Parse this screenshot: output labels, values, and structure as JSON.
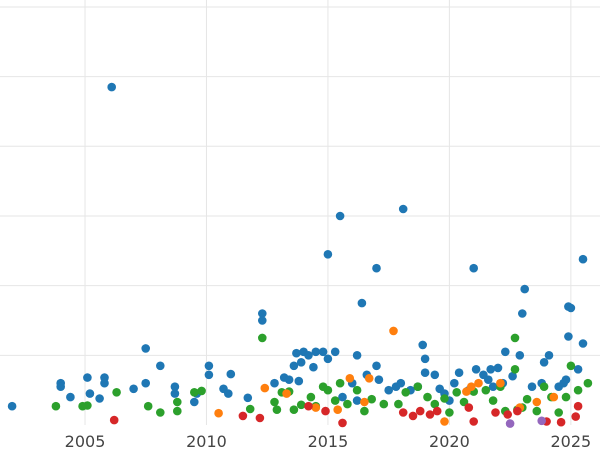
{
  "chart_data": {
    "type": "scatter",
    "title": "",
    "xlabel": "",
    "ylabel": "",
    "xlim": [
      2001.5,
      2026.2
    ],
    "ylim": [
      0,
      6.1
    ],
    "x_ticks": [
      2005,
      2010,
      2015,
      2020,
      2025
    ],
    "x_tick_labels": [
      "2005",
      "2010",
      "2015",
      "2020",
      "2025"
    ],
    "y_grid": [
      1,
      2,
      3,
      4,
      5,
      6
    ],
    "grid": true,
    "legend": "none",
    "series": [
      {
        "color": "#1f77b4",
        "points": [
          [
            2002.0,
            0.27
          ],
          [
            2004.0,
            0.6
          ],
          [
            2004.0,
            0.55
          ],
          [
            2004.4,
            0.4
          ],
          [
            2005.1,
            0.68
          ],
          [
            2005.2,
            0.45
          ],
          [
            2005.6,
            0.38
          ],
          [
            2005.8,
            0.68
          ],
          [
            2005.8,
            0.6
          ],
          [
            2006.1,
            4.85
          ],
          [
            2007.0,
            0.52
          ],
          [
            2007.5,
            1.1
          ],
          [
            2007.5,
            0.6
          ],
          [
            2008.1,
            0.85
          ],
          [
            2008.7,
            0.55
          ],
          [
            2008.7,
            0.45
          ],
          [
            2009.5,
            0.33
          ],
          [
            2009.6,
            0.45
          ],
          [
            2010.1,
            0.85
          ],
          [
            2010.1,
            0.72
          ],
          [
            2010.7,
            0.52
          ],
          [
            2010.9,
            0.45
          ],
          [
            2011.0,
            0.73
          ],
          [
            2011.7,
            0.39
          ],
          [
            2012.3,
            1.6
          ],
          [
            2012.3,
            1.5
          ],
          [
            2012.8,
            0.6
          ],
          [
            2013.2,
            0.68
          ],
          [
            2013.4,
            0.65
          ],
          [
            2013.6,
            0.85
          ],
          [
            2013.7,
            1.03
          ],
          [
            2013.8,
            0.63
          ],
          [
            2013.9,
            0.9
          ],
          [
            2014.0,
            1.05
          ],
          [
            2014.2,
            1.0
          ],
          [
            2014.4,
            0.83
          ],
          [
            2014.5,
            1.05
          ],
          [
            2014.8,
            1.05
          ],
          [
            2015.0,
            0.95
          ],
          [
            2015.0,
            2.45
          ],
          [
            2015.3,
            1.05
          ],
          [
            2015.5,
            3.0
          ],
          [
            2015.6,
            0.4
          ],
          [
            2016.0,
            0.6
          ],
          [
            2016.2,
            1.0
          ],
          [
            2016.2,
            0.35
          ],
          [
            2016.4,
            1.75
          ],
          [
            2016.6,
            0.72
          ],
          [
            2017.0,
            2.25
          ],
          [
            2017.0,
            0.85
          ],
          [
            2017.1,
            0.65
          ],
          [
            2017.5,
            0.5
          ],
          [
            2017.8,
            0.55
          ],
          [
            2018.1,
            3.1
          ],
          [
            2018.0,
            0.6
          ],
          [
            2018.4,
            0.5
          ],
          [
            2018.7,
            0.55
          ],
          [
            2018.9,
            1.15
          ],
          [
            2019.0,
            0.95
          ],
          [
            2019.0,
            0.75
          ],
          [
            2019.4,
            0.72
          ],
          [
            2019.6,
            0.52
          ],
          [
            2019.8,
            0.45
          ],
          [
            2020.0,
            0.35
          ],
          [
            2020.2,
            0.6
          ],
          [
            2020.4,
            0.75
          ],
          [
            2020.8,
            0.5
          ],
          [
            2021.0,
            2.25
          ],
          [
            2021.1,
            0.8
          ],
          [
            2021.4,
            0.72
          ],
          [
            2021.6,
            0.65
          ],
          [
            2021.7,
            0.8
          ],
          [
            2021.8,
            0.55
          ],
          [
            2022.0,
            0.82
          ],
          [
            2022.2,
            0.6
          ],
          [
            2022.3,
            1.05
          ],
          [
            2022.6,
            0.7
          ],
          [
            2022.9,
            1.0
          ],
          [
            2023.0,
            1.6
          ],
          [
            2023.1,
            1.95
          ],
          [
            2023.4,
            0.55
          ],
          [
            2023.8,
            0.6
          ],
          [
            2023.9,
            0.9
          ],
          [
            2024.1,
            1.0
          ],
          [
            2024.5,
            0.55
          ],
          [
            2024.7,
            0.6
          ],
          [
            2024.8,
            0.65
          ],
          [
            2024.9,
            1.7
          ],
          [
            2025.0,
            1.68
          ],
          [
            2024.9,
            1.27
          ],
          [
            2025.3,
            0.8
          ],
          [
            2025.5,
            1.17
          ],
          [
            2025.5,
            2.38
          ]
        ]
      },
      {
        "color": "#2ca02c",
        "points": [
          [
            2003.8,
            0.27
          ],
          [
            2004.9,
            0.27
          ],
          [
            2005.1,
            0.28
          ],
          [
            2006.3,
            0.47
          ],
          [
            2007.6,
            0.27
          ],
          [
            2008.1,
            0.18
          ],
          [
            2008.8,
            0.33
          ],
          [
            2008.8,
            0.2
          ],
          [
            2009.5,
            0.47
          ],
          [
            2009.8,
            0.49
          ],
          [
            2011.8,
            0.23
          ],
          [
            2012.3,
            1.25
          ],
          [
            2012.8,
            0.33
          ],
          [
            2012.9,
            0.22
          ],
          [
            2013.1,
            0.47
          ],
          [
            2013.4,
            0.48
          ],
          [
            2013.6,
            0.22
          ],
          [
            2013.9,
            0.29
          ],
          [
            2014.3,
            0.4
          ],
          [
            2014.5,
            0.27
          ],
          [
            2014.8,
            0.55
          ],
          [
            2015.0,
            0.5
          ],
          [
            2015.3,
            0.35
          ],
          [
            2015.5,
            0.6
          ],
          [
            2015.8,
            0.3
          ],
          [
            2016.2,
            0.5
          ],
          [
            2016.5,
            0.2
          ],
          [
            2016.8,
            0.37
          ],
          [
            2017.3,
            0.3
          ],
          [
            2017.9,
            0.3
          ],
          [
            2018.2,
            0.47
          ],
          [
            2018.7,
            0.55
          ],
          [
            2019.1,
            0.4
          ],
          [
            2019.4,
            0.3
          ],
          [
            2019.8,
            0.38
          ],
          [
            2020.0,
            0.18
          ],
          [
            2020.3,
            0.47
          ],
          [
            2020.6,
            0.33
          ],
          [
            2021.0,
            0.48
          ],
          [
            2021.5,
            0.5
          ],
          [
            2021.8,
            0.35
          ],
          [
            2022.1,
            0.55
          ],
          [
            2022.3,
            0.2
          ],
          [
            2022.7,
            0.8
          ],
          [
            2022.7,
            1.25
          ],
          [
            2022.8,
            0.22
          ],
          [
            2023.0,
            0.25
          ],
          [
            2023.2,
            0.37
          ],
          [
            2023.6,
            0.2
          ],
          [
            2023.9,
            0.55
          ],
          [
            2024.2,
            0.4
          ],
          [
            2024.5,
            0.18
          ],
          [
            2024.8,
            0.4
          ],
          [
            2025.0,
            0.85
          ],
          [
            2025.3,
            0.5
          ],
          [
            2025.7,
            0.6
          ]
        ]
      },
      {
        "color": "#ff7f0e",
        "points": [
          [
            2010.5,
            0.17
          ],
          [
            2012.4,
            0.53
          ],
          [
            2013.3,
            0.45
          ],
          [
            2014.5,
            0.25
          ],
          [
            2015.4,
            0.22
          ],
          [
            2015.9,
            0.67
          ],
          [
            2016.5,
            0.33
          ],
          [
            2016.7,
            0.67
          ],
          [
            2017.7,
            1.35
          ],
          [
            2019.8,
            0.05
          ],
          [
            2020.7,
            0.48
          ],
          [
            2020.9,
            0.55
          ],
          [
            2021.2,
            0.6
          ],
          [
            2022.1,
            0.6
          ],
          [
            2022.9,
            0.25
          ],
          [
            2023.6,
            0.33
          ],
          [
            2024.3,
            0.4
          ]
        ]
      },
      {
        "color": "#d62728",
        "points": [
          [
            2006.2,
            0.07
          ],
          [
            2011.5,
            0.13
          ],
          [
            2012.2,
            0.1
          ],
          [
            2014.2,
            0.27
          ],
          [
            2014.9,
            0.2
          ],
          [
            2015.6,
            0.03
          ],
          [
            2018.1,
            0.18
          ],
          [
            2018.5,
            0.13
          ],
          [
            2018.8,
            0.2
          ],
          [
            2019.2,
            0.15
          ],
          [
            2019.5,
            0.2
          ],
          [
            2020.8,
            0.25
          ],
          [
            2021.0,
            0.05
          ],
          [
            2021.9,
            0.18
          ],
          [
            2022.4,
            0.15
          ],
          [
            2022.8,
            0.2
          ],
          [
            2024.0,
            0.05
          ],
          [
            2024.6,
            0.04
          ],
          [
            2025.2,
            0.12
          ],
          [
            2025.3,
            0.27
          ]
        ]
      },
      {
        "color": "#9467bd",
        "points": [
          [
            2022.5,
            0.02
          ],
          [
            2023.8,
            0.06
          ]
        ]
      }
    ]
  }
}
